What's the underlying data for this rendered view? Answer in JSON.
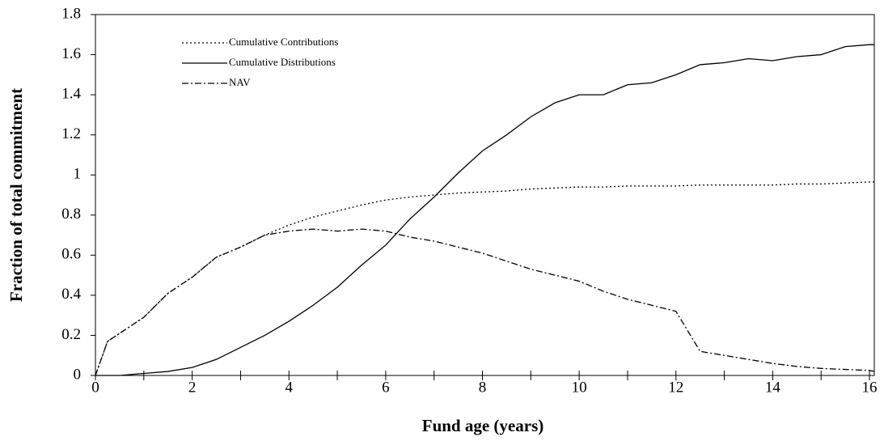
{
  "chart_data": {
    "type": "line",
    "x_label": "Fund age (years)",
    "y_label": "Fraction of total commitment",
    "x": [
      0,
      0.25,
      0.5,
      1,
      1.5,
      2,
      2.5,
      3,
      3.5,
      4,
      4.5,
      5,
      5.5,
      6,
      6.5,
      7,
      7.5,
      8,
      8.5,
      9,
      9.5,
      10,
      10.5,
      11,
      11.5,
      12,
      12.5,
      13,
      13.5,
      14,
      14.5,
      15,
      15.5,
      16,
      16.1
    ],
    "series": [
      {
        "name": "Cumulative Contributions",
        "color": "#000000",
        "dash": "dotted",
        "values": [
          0,
          0.17,
          0.21,
          0.29,
          0.41,
          0.49,
          0.59,
          0.64,
          0.7,
          0.75,
          0.79,
          0.82,
          0.85,
          0.875,
          0.89,
          0.9,
          0.91,
          0.915,
          0.92,
          0.93,
          0.935,
          0.94,
          0.94,
          0.945,
          0.945,
          0.945,
          0.95,
          0.95,
          0.95,
          0.95,
          0.955,
          0.955,
          0.96,
          0.965,
          0.965
        ]
      },
      {
        "name": "Cumulative Distributions",
        "color": "#000000",
        "dash": "solid",
        "values": [
          0,
          0,
          0,
          0.01,
          0.02,
          0.04,
          0.08,
          0.14,
          0.2,
          0.27,
          0.35,
          0.44,
          0.55,
          0.65,
          0.78,
          0.89,
          1.01,
          1.12,
          1.2,
          1.29,
          1.36,
          1.4,
          1.4,
          1.45,
          1.46,
          1.5,
          1.55,
          1.56,
          1.58,
          1.57,
          1.59,
          1.6,
          1.64,
          1.65,
          1.65
        ]
      },
      {
        "name": "NAV",
        "color": "#000000",
        "dash": "dashdot",
        "values": [
          0,
          0.17,
          0.21,
          0.29,
          0.41,
          0.49,
          0.59,
          0.64,
          0.7,
          0.72,
          0.73,
          0.72,
          0.73,
          0.72,
          0.69,
          0.67,
          0.64,
          0.61,
          0.57,
          0.53,
          0.5,
          0.47,
          0.42,
          0.38,
          0.35,
          0.32,
          0.12,
          0.1,
          0.08,
          0.06,
          0.045,
          0.035,
          0.03,
          0.025,
          0.02
        ]
      }
    ],
    "xlim": [
      0,
      16.1
    ],
    "ylim": [
      0,
      1.8
    ],
    "xticks": [
      0,
      2,
      4,
      6,
      8,
      10,
      12,
      14,
      16
    ],
    "xminor_ticks": [
      1,
      3,
      5,
      7,
      9,
      11,
      13,
      15
    ],
    "yticks": [
      0,
      0.2,
      0.4,
      0.6,
      0.8,
      1,
      1.2,
      1.4,
      1.6,
      1.8
    ],
    "legend": "upper left",
    "grid": false
  }
}
